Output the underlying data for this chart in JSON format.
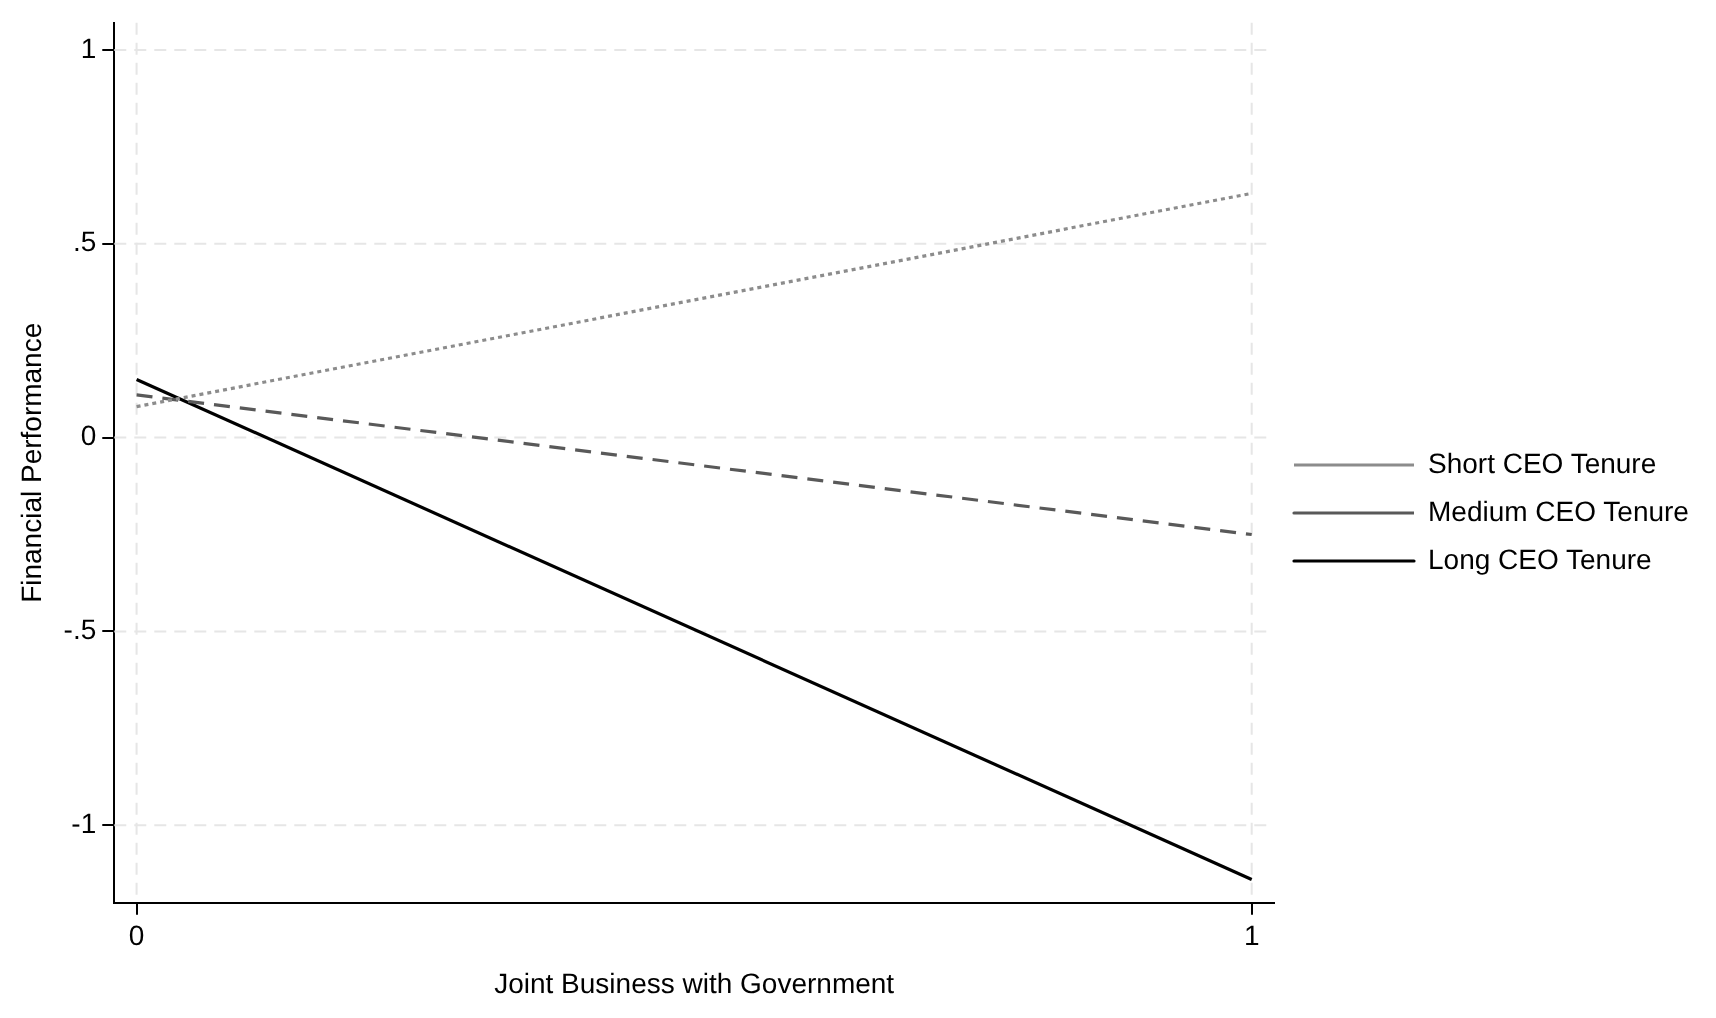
{
  "chart_data": {
    "type": "line",
    "xlabel": "Joint Business with Government",
    "ylabel": "Financial Performance",
    "x": [
      0,
      1
    ],
    "series": [
      {
        "name": "Short CEO Tenure",
        "color": "#8c8c8c",
        "line_style": "dotted",
        "values": [
          0.08,
          0.63
        ]
      },
      {
        "name": "Medium CEO Tenure",
        "color": "#595959",
        "line_style": "dashed",
        "values": [
          0.11,
          -0.25
        ]
      },
      {
        "name": "Long CEO Tenure",
        "color": "#000000",
        "line_style": "solid",
        "values": [
          0.15,
          -1.14
        ]
      }
    ],
    "xlim": [
      -0.02,
      1.02
    ],
    "xticks": [
      0,
      1
    ],
    "ylim": [
      -1.2,
      1.07
    ],
    "yticks": [
      {
        "value": -1,
        "label": "-1"
      },
      {
        "value": -0.5,
        "label": "-.5"
      },
      0,
      {
        "value": 0.5,
        "label": ".5"
      },
      1
    ],
    "grid": true,
    "legend": "right",
    "marker": "none"
  }
}
